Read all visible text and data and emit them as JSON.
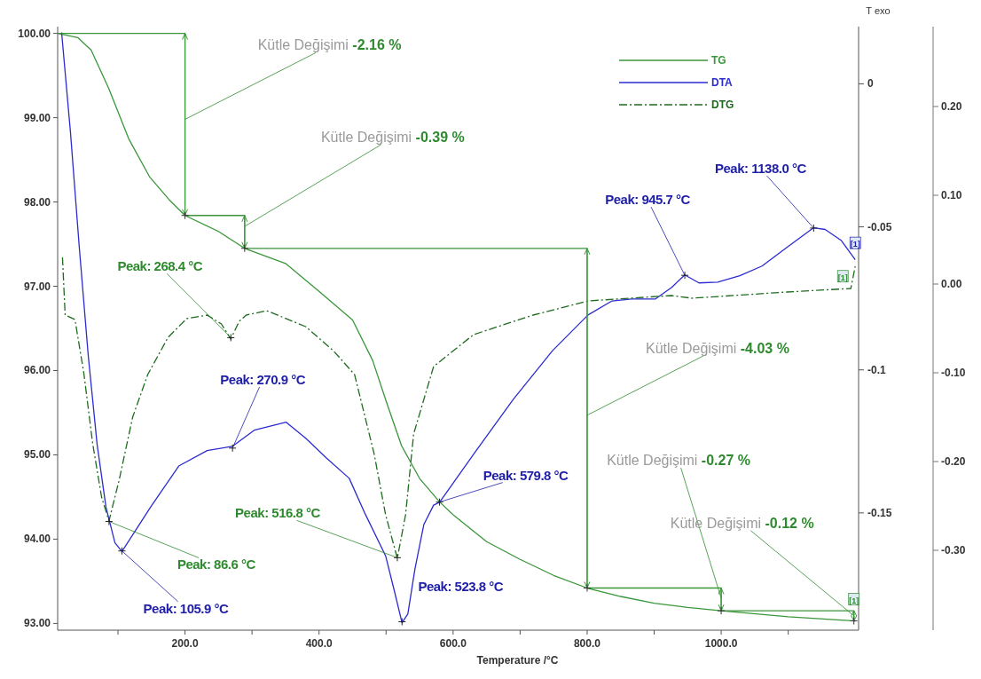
{
  "chart_data": {
    "type": "line",
    "xlabel": "Temperature /°C",
    "y2label": "T exo",
    "legend": "top right",
    "xlim": [
      10,
      1205
    ],
    "xticks": [
      {
        "value": 100,
        "label": null
      },
      {
        "value": 200,
        "label": "200.0"
      },
      {
        "value": 300,
        "label": null
      },
      {
        "value": 400,
        "label": "400.0"
      },
      {
        "value": 500,
        "label": null
      },
      {
        "value": 600,
        "label": "600.0"
      },
      {
        "value": 700,
        "label": null
      },
      {
        "value": 800,
        "label": "800.0"
      },
      {
        "value": 900,
        "label": null
      },
      {
        "value": 1000,
        "label": "1000.0"
      },
      {
        "value": 1100,
        "label": null
      }
    ],
    "ylim": [
      92.92,
      100.08
    ],
    "yticks": [
      {
        "value": 93,
        "label": "93.00"
      },
      {
        "value": 94,
        "label": "94.00"
      },
      {
        "value": 95,
        "label": "95.00"
      },
      {
        "value": 96,
        "label": "96.00"
      },
      {
        "value": 97,
        "label": "97.00"
      },
      {
        "value": 98,
        "label": "98.00"
      },
      {
        "value": 99,
        "label": "99.00"
      },
      {
        "value": 100,
        "label": "100.00"
      }
    ],
    "y2lim": [
      -0.191,
      0.02
    ],
    "y2ticks": [
      0,
      -0.05,
      -0.1,
      -0.15
    ],
    "y3lim": [
      -0.39,
      0.29
    ],
    "y3ticks": [
      {
        "value": 0.2,
        "label": "0.20"
      },
      {
        "value": 0.1,
        "label": "0.10"
      },
      {
        "value": 0,
        "label": "0.00"
      },
      {
        "value": -0.1,
        "label": "-0.10"
      },
      {
        "value": -0.2,
        "label": "-0.20"
      },
      {
        "value": -0.3,
        "label": "-0.30"
      }
    ],
    "series": [
      {
        "name": "TG",
        "color": "#3a963a",
        "line_style": "solid",
        "x": [
          10,
          40,
          60,
          86,
          116,
          147,
          176,
          200,
          250,
          289,
          350,
          400,
          450,
          480,
          500,
          523,
          550,
          580,
          600,
          650,
          700,
          750,
          800,
          850,
          900,
          950,
          1000,
          1100,
          1200
        ],
        "values": [
          100.0,
          99.95,
          99.8,
          99.35,
          98.75,
          98.3,
          98.03,
          97.84,
          97.65,
          97.45,
          97.27,
          96.94,
          96.6,
          96.12,
          95.64,
          95.11,
          94.72,
          94.44,
          94.29,
          93.97,
          93.76,
          93.57,
          93.42,
          93.32,
          93.24,
          93.19,
          93.15,
          93.08,
          93.03
        ]
      },
      {
        "name": "DTA",
        "color": "#2b2bd0",
        "line_style": "solid",
        "axis": "y2",
        "x": [
          15.9,
          29.1,
          42.4,
          55.6,
          68.9,
          82.1,
          95.4,
          105.9,
          149.7,
          190.7,
          233.1,
          270.9,
          303.3,
          351.0,
          380.1,
          410.6,
          445.0,
          468.9,
          499.3,
          512.6,
          523.8,
          532.5,
          543.0,
          556.3,
          570.9,
          579.8,
          630.5,
          690.1,
          748.3,
          801.3,
          837.1,
          866.2,
          902.0,
          925.8,
          945.7,
          966.9,
          994.7,
          1027.8,
          1060.9,
          1098.0,
          1138.0,
          1155.0,
          1178.8,
          1200.0
        ],
        "values": [
          0.018,
          -0.0169,
          -0.0575,
          -0.0949,
          -0.1261,
          -0.148,
          -0.1604,
          -0.1635,
          -0.1476,
          -0.1336,
          -0.1282,
          -0.1267,
          -0.1211,
          -0.1183,
          -0.1239,
          -0.1307,
          -0.1379,
          -0.1504,
          -0.165,
          -0.1775,
          -0.1884,
          -0.1853,
          -0.1697,
          -0.1541,
          -0.1473,
          -0.1463,
          -0.1295,
          -0.1102,
          -0.0933,
          -0.0808,
          -0.0759,
          -0.0752,
          -0.0752,
          -0.0712,
          -0.0668,
          -0.0696,
          -0.0693,
          -0.0671,
          -0.0637,
          -0.0572,
          -0.0503,
          -0.0509,
          -0.0547,
          -0.0615
        ]
      },
      {
        "name": "DTG",
        "color": "#1e6b1e",
        "line_style": "dashdot",
        "axis": "y3",
        "x": [
          17.2,
          21.2,
          35.8,
          49.0,
          62.3,
          75.5,
          86.6,
          102.0,
          121.9,
          144.4,
          174.8,
          202.6,
          233.1,
          254.3,
          268.4,
          280.8,
          291.4,
          321.9,
          380.1,
          421.2,
          453.0,
          482.1,
          499.3,
          516.8,
          529.1,
          541.1,
          570.9,
          630.5,
          719.2,
          801.3,
          925.8,
          956.3,
          1098.0,
          1193.4,
          1200.0
        ],
        "values": [
          0.03,
          -0.035,
          -0.04,
          -0.1,
          -0.18,
          -0.24,
          -0.267,
          -0.22,
          -0.15,
          -0.102,
          -0.06,
          -0.039,
          -0.035,
          -0.045,
          -0.062,
          -0.042,
          -0.035,
          -0.03,
          -0.048,
          -0.075,
          -0.102,
          -0.191,
          -0.26,
          -0.309,
          -0.26,
          -0.169,
          -0.093,
          -0.057,
          -0.035,
          -0.019,
          -0.013,
          -0.016,
          -0.009,
          -0.005,
          0.02
        ]
      },
      {
        "color": "#3a963a",
        "line_style": "solid",
        "x": [
          10,
          200,
          200
        ],
        "values": [
          100.0,
          100.0,
          97.84
        ]
      },
      {
        "color": "#3a963a",
        "line_style": "solid",
        "x": [
          200,
          289,
          289
        ],
        "values": [
          97.84,
          97.84,
          97.45
        ]
      },
      {
        "color": "#3a963a",
        "line_style": "solid",
        "x": [
          289,
          800,
          800
        ],
        "values": [
          97.45,
          97.45,
          93.42
        ]
      },
      {
        "color": "#3a963a",
        "line_style": "solid",
        "x": [
          800,
          1000,
          1000
        ],
        "values": [
          93.42,
          93.42,
          93.15
        ]
      },
      {
        "color": "#3a963a",
        "line_style": "solid",
        "x": [
          1000,
          1198,
          1198
        ],
        "values": [
          93.15,
          93.15,
          93.03
        ]
      }
    ],
    "annotations": [
      {
        "text": "Kütle Değişimi -2.16 %",
        "x": 200,
        "y": 98.98
      },
      {
        "text": "Kütle Değişimi -0.39 %",
        "x": 289,
        "y": 97.71
      },
      {
        "text": "Kütle Değişimi -4.03 %",
        "x": 800,
        "y": 95.47
      },
      {
        "text": "Kütle Değişimi -0.27 %",
        "x": 1000,
        "y": 93.3
      },
      {
        "text": "Kütle Değişimi -0.12 %",
        "x": 1198,
        "y": 93.09
      },
      {
        "text": "Peak: 105.9 °C",
        "x": 105.9,
        "y": 93.86
      },
      {
        "text": "Peak: 270.9 °C",
        "x": 270.9,
        "y": 95.08
      },
      {
        "text": "Peak: 523.8 °C",
        "x": 523.8,
        "y": 93.02
      },
      {
        "text": "Peak: 579.8 °C",
        "x": 579.8,
        "y": 94.44
      },
      {
        "text": "Peak: 945.7 °C",
        "x": 945.7,
        "y": 97.13
      },
      {
        "text": "Peak: 1138.0 °C",
        "x": 1138.0,
        "y": 97.69
      },
      {
        "text": "Peak: 268.4 °C",
        "x": 268.4,
        "y": 96.39
      },
      {
        "text": "Peak: 86.6 °C",
        "x": 86.6,
        "y": 94.21
      },
      {
        "text": "Peak: 516.8 °C",
        "x": 516.8,
        "y": 93.78
      },
      {
        "text": "[1]",
        "x": 1200,
        "y": 97.32
      },
      {
        "text": "[1]",
        "x": 1200,
        "y": 97.24
      },
      {
        "text": "[1]",
        "x": 1198,
        "y": 93.03
      }
    ]
  }
}
